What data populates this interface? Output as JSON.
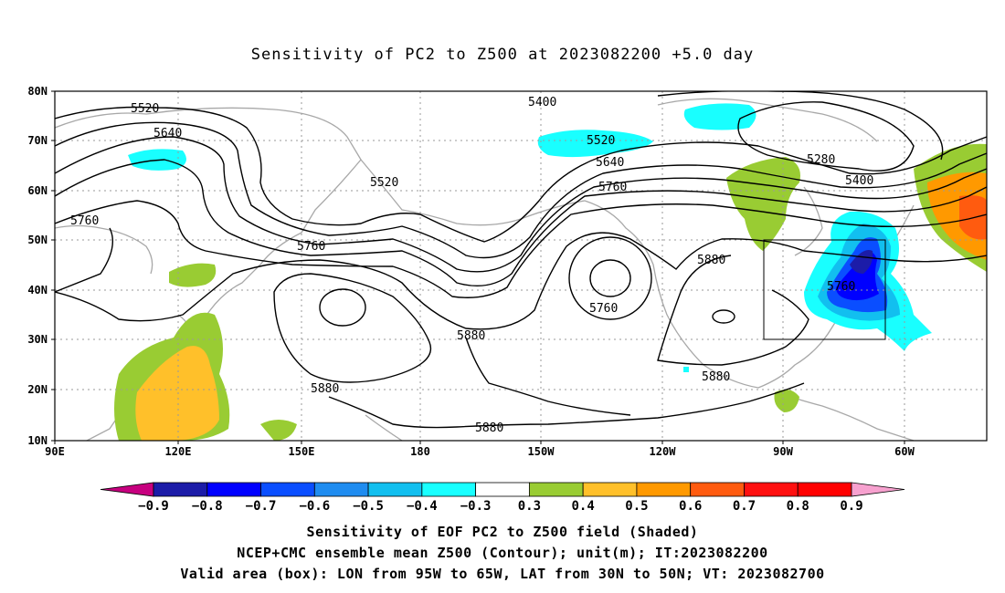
{
  "title": "Sensitivity of PC2 to Z500 at 2023082200 +5.0 day",
  "map": {
    "lon_labels": [
      "90E",
      "120E",
      "150E",
      "180",
      "150W",
      "120W",
      "90W",
      "60W"
    ],
    "lat_labels": [
      "80N",
      "70N",
      "60N",
      "50N",
      "40N",
      "30N",
      "20N",
      "10N"
    ],
    "contour_labels": [
      {
        "text": "5520",
        "id": "c1"
      },
      {
        "text": "5640",
        "id": "c2"
      },
      {
        "text": "5760",
        "id": "c3"
      },
      {
        "text": "5760",
        "id": "c4"
      },
      {
        "text": "5520",
        "id": "c5"
      },
      {
        "text": "5400",
        "id": "c6"
      },
      {
        "text": "5520",
        "id": "c7"
      },
      {
        "text": "5640",
        "id": "c8"
      },
      {
        "text": "5760",
        "id": "c9"
      },
      {
        "text": "5280",
        "id": "c10"
      },
      {
        "text": "5400",
        "id": "c11"
      },
      {
        "text": "5880",
        "id": "c12"
      },
      {
        "text": "5880",
        "id": "c13"
      },
      {
        "text": "5760",
        "id": "c14"
      },
      {
        "text": "5880",
        "id": "c15"
      },
      {
        "text": "5880",
        "id": "c16"
      },
      {
        "text": "5760",
        "id": "c17"
      },
      {
        "text": "5880",
        "id": "c18"
      }
    ],
    "valid_box": {
      "lon": [
        -95,
        -65
      ],
      "lat": [
        30,
        50
      ]
    }
  },
  "colorbar": {
    "labels": [
      "-0.9",
      "-0.8",
      "-0.7",
      "-0.6",
      "-0.5",
      "-0.4",
      "-0.3",
      "0.3",
      "0.4",
      "0.5",
      "0.6",
      "0.7",
      "0.8",
      "0.9"
    ],
    "colors": [
      "#c7007f",
      "#1c1ca8",
      "#0000ff",
      "#0a4eff",
      "#1f8cf0",
      "#12bfef",
      "#19ffff",
      "#ffffff",
      "#99cc33",
      "#ffc02a",
      "#ff9900",
      "#ff5b0f",
      "#ff1010",
      "#ff0000",
      "#f7a1cf"
    ]
  },
  "captions": {
    "line1": "Sensitivity of EOF PC2 to Z500 field (Shaded)",
    "line2": "NCEP+CMC ensemble mean Z500 (Contour); unit(m); IT:2023082200",
    "line3": "Valid area (box): LON from 95W to 65W, LAT from 30N to 50N; VT: 2023082700"
  }
}
